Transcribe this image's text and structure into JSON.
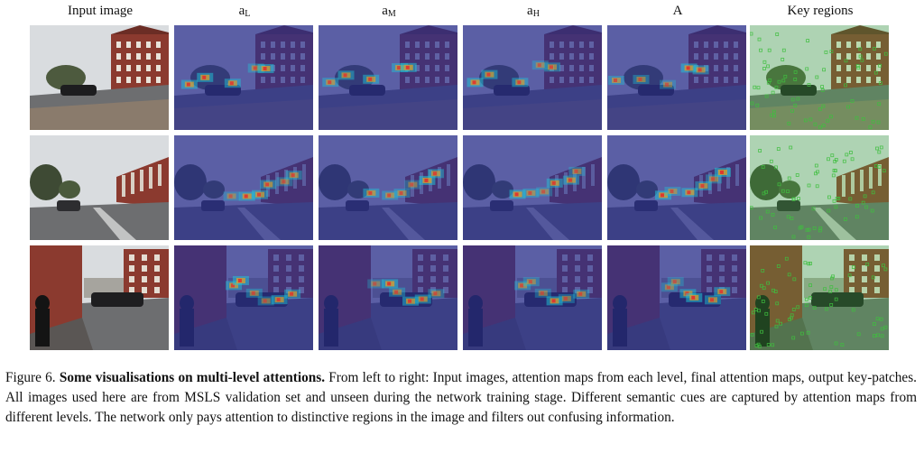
{
  "columns": [
    {
      "main": "Input image",
      "sub": ""
    },
    {
      "main": "a",
      "sub": "L"
    },
    {
      "main": "a",
      "sub": "M"
    },
    {
      "main": "a",
      "sub": "H"
    },
    {
      "main": "A",
      "sub": ""
    },
    {
      "main": "Key regions",
      "sub": ""
    }
  ],
  "figure": {
    "label": "Figure 6.",
    "title": "Some visualisations on multi-level attentions.",
    "body": "From left to right: Input images, attention maps from each level, final attention maps, output key-patches. All images used here are from MSLS validation set and unseen during the network training stage. Different semantic cues are captured by attention maps from different levels. The network only pays attention to distinctive regions in the image and filters out confusing information."
  },
  "colors": {
    "attention_base": "#2a2f8f",
    "attention_hot": "#e8a020",
    "key_region_overlay": "#3fbf3f",
    "sky": "#d9dcdf",
    "road": "#6d6e70",
    "brick": "#8b3a2f"
  }
}
